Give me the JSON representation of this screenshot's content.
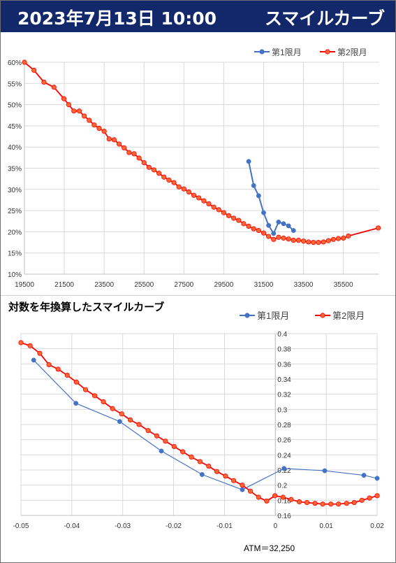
{
  "header": {
    "timestamp": "2023年7月13日 10:00",
    "title": "スマイルカーブ",
    "bg_color": "#13286a"
  },
  "colors": {
    "series1": "#4472c4",
    "series2": "#ff0000",
    "series2_marker_fill": "#ff6633",
    "grid": "#d9d9d9"
  },
  "chart_data": [
    {
      "type": "line",
      "title": "",
      "xlabel": "",
      "ylabel": "",
      "xlim": [
        19500,
        37300
      ],
      "ylim": [
        0.1,
        0.6
      ],
      "x_ticks": [
        19500,
        21500,
        23500,
        25500,
        27500,
        29500,
        31500,
        33500,
        35500
      ],
      "y_ticks": [
        0.1,
        0.15,
        0.2,
        0.25,
        0.3,
        0.35,
        0.4,
        0.45,
        0.5,
        0.55,
        0.6
      ],
      "x_tick_labels": [
        "19500",
        "21500",
        "23500",
        "25500",
        "27500",
        "29500",
        "31500",
        "33500",
        "35500"
      ],
      "y_tick_labels": [
        "10%",
        "15%",
        "20%",
        "25%",
        "30%",
        "35%",
        "40%",
        "45%",
        "50%",
        "55%",
        "60%"
      ],
      "grid": true,
      "legend": "top-right",
      "series": [
        {
          "name": "第1限月",
          "points": [
            [
              30750,
              0.366
            ],
            [
              31000,
              0.309
            ],
            [
              31250,
              0.285
            ],
            [
              31500,
              0.245
            ],
            [
              31750,
              0.215
            ],
            [
              32000,
              0.196
            ],
            [
              32250,
              0.223
            ],
            [
              32500,
              0.219
            ],
            [
              32750,
              0.214
            ],
            [
              33000,
              0.203
            ]
          ]
        },
        {
          "name": "第2限月",
          "points": [
            [
              19500,
              0.6
            ],
            [
              19980,
              0.581
            ],
            [
              20480,
              0.553
            ],
            [
              20980,
              0.541
            ],
            [
              21480,
              0.514
            ],
            [
              21720,
              0.5
            ],
            [
              21980,
              0.485
            ],
            [
              22250,
              0.485
            ],
            [
              22500,
              0.473
            ],
            [
              22750,
              0.463
            ],
            [
              23000,
              0.452
            ],
            [
              23250,
              0.444
            ],
            [
              23500,
              0.437
            ],
            [
              23750,
              0.419
            ],
            [
              24000,
              0.417
            ],
            [
              24250,
              0.407
            ],
            [
              24500,
              0.398
            ],
            [
              24750,
              0.387
            ],
            [
              25000,
              0.384
            ],
            [
              25250,
              0.374
            ],
            [
              25500,
              0.363
            ],
            [
              25750,
              0.352
            ],
            [
              26000,
              0.346
            ],
            [
              26250,
              0.338
            ],
            [
              26500,
              0.329
            ],
            [
              26750,
              0.322
            ],
            [
              27000,
              0.316
            ],
            [
              27250,
              0.306
            ],
            [
              27500,
              0.301
            ],
            [
              27750,
              0.294
            ],
            [
              28000,
              0.286
            ],
            [
              28250,
              0.28
            ],
            [
              28500,
              0.273
            ],
            [
              28750,
              0.266
            ],
            [
              29000,
              0.258
            ],
            [
              29250,
              0.252
            ],
            [
              29500,
              0.245
            ],
            [
              29750,
              0.238
            ],
            [
              30000,
              0.232
            ],
            [
              30250,
              0.227
            ],
            [
              30500,
              0.219
            ],
            [
              30750,
              0.213
            ],
            [
              31000,
              0.207
            ],
            [
              31250,
              0.203
            ],
            [
              31500,
              0.197
            ],
            [
              31750,
              0.189
            ],
            [
              32000,
              0.182
            ],
            [
              32250,
              0.187
            ],
            [
              32500,
              0.185
            ],
            [
              32750,
              0.183
            ],
            [
              33000,
              0.18
            ],
            [
              33250,
              0.18
            ],
            [
              33500,
              0.178
            ],
            [
              33750,
              0.176
            ],
            [
              34000,
              0.175
            ],
            [
              34250,
              0.175
            ],
            [
              34500,
              0.176
            ],
            [
              34750,
              0.179
            ],
            [
              35000,
              0.182
            ],
            [
              35250,
              0.184
            ],
            [
              35500,
              0.185
            ],
            [
              35750,
              0.19
            ],
            [
              37250,
              0.209
            ]
          ]
        }
      ]
    },
    {
      "type": "line",
      "title": "対数を年換算したスマイルカーブ",
      "xlabel": "",
      "ylabel": "",
      "xlim": [
        -0.05,
        0.02
      ],
      "ylim": [
        0.16,
        0.4
      ],
      "x_ticks": [
        -0.05,
        -0.04,
        -0.03,
        -0.02,
        -0.01,
        0,
        0.01,
        0.02
      ],
      "y_ticks": [
        0.16,
        0.18,
        0.2,
        0.22,
        0.24,
        0.26,
        0.28,
        0.3,
        0.32,
        0.34,
        0.36,
        0.38,
        0.4
      ],
      "x_tick_labels": [
        "-0.05",
        "-0.04",
        "-0.03",
        "-0.02",
        "-0.01",
        "0",
        "0.01",
        "0.02"
      ],
      "y_tick_labels": [
        "0.16",
        "0.18",
        "0.2",
        "0.22",
        "0.24",
        "0.26",
        "0.28",
        "0.3",
        "0.32",
        "0.34",
        "0.36",
        "0.38",
        "0.4"
      ],
      "grid": true,
      "legend": "top-right",
      "annotation": "ATM＝32,250",
      "series": [
        {
          "name": "第1限月",
          "points": [
            [
              -0.0475,
              0.365
            ],
            [
              -0.0392,
              0.308
            ],
            [
              -0.0306,
              0.284
            ],
            [
              -0.0224,
              0.245
            ],
            [
              -0.0144,
              0.214
            ],
            [
              -0.0065,
              0.194
            ],
            [
              0.0017,
              0.222
            ],
            [
              0.0097,
              0.219
            ],
            [
              0.0174,
              0.213
            ],
            [
              0.02,
              0.209
            ]
          ]
        },
        {
          "name": "第2限月",
          "points": [
            [
              -0.05,
              0.388
            ],
            [
              -0.0482,
              0.384
            ],
            [
              -0.0463,
              0.374
            ],
            [
              -0.0445,
              0.359
            ],
            [
              -0.0427,
              0.353
            ],
            [
              -0.0409,
              0.345
            ],
            [
              -0.0391,
              0.336
            ],
            [
              -0.0373,
              0.326
            ],
            [
              -0.0355,
              0.318
            ],
            [
              -0.0338,
              0.31
            ],
            [
              -0.032,
              0.301
            ],
            [
              -0.0302,
              0.294
            ],
            [
              -0.0285,
              0.286
            ],
            [
              -0.0268,
              0.28
            ],
            [
              -0.025,
              0.272
            ],
            [
              -0.0233,
              0.265
            ],
            [
              -0.0216,
              0.258
            ],
            [
              -0.0199,
              0.251
            ],
            [
              -0.0182,
              0.244
            ],
            [
              -0.0165,
              0.237
            ],
            [
              -0.0148,
              0.231
            ],
            [
              -0.0131,
              0.225
            ],
            [
              -0.0115,
              0.218
            ],
            [
              -0.0098,
              0.212
            ],
            [
              -0.0082,
              0.206
            ],
            [
              -0.0065,
              0.2
            ],
            [
              -0.0049,
              0.192
            ],
            [
              -0.0033,
              0.184
            ],
            [
              -0.0017,
              0.179
            ],
            [
              -0.0001,
              0.186
            ],
            [
              0.0015,
              0.184
            ],
            [
              0.0031,
              0.181
            ],
            [
              0.0047,
              0.178
            ],
            [
              0.0062,
              0.177
            ],
            [
              0.0078,
              0.176
            ],
            [
              0.0093,
              0.175
            ],
            [
              0.0109,
              0.175
            ],
            [
              0.0124,
              0.175
            ],
            [
              0.014,
              0.176
            ],
            [
              0.0155,
              0.177
            ],
            [
              0.017,
              0.18
            ],
            [
              0.0185,
              0.183
            ],
            [
              0.02,
              0.186
            ]
          ]
        }
      ]
    }
  ]
}
